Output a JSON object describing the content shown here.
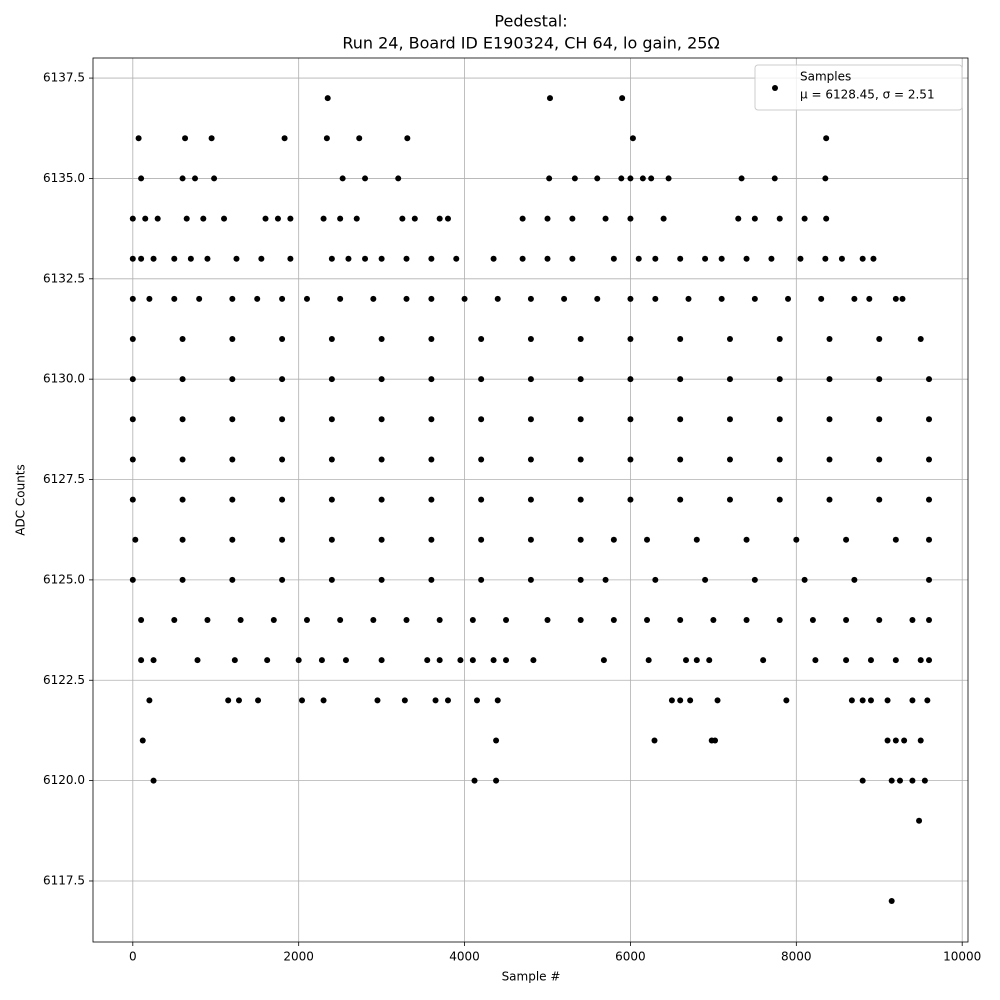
{
  "chart_data": {
    "type": "scatter",
    "title": "Pedestal:",
    "subtitle": "Run 24, Board ID E190324, CH 64, lo gain, 25Ω",
    "x_label": "Sample #",
    "y_label": "ADC Counts",
    "annotation": "μ = 6128.45, σ = 2.51",
    "legend": "upper right",
    "grid": true,
    "xlim": [
      -480,
      10070
    ],
    "ylim": [
      6115.98,
      6138.0
    ],
    "xticks": [
      0,
      2000,
      4000,
      6000,
      8000,
      10000
    ],
    "yticks": [
      6117.5,
      {
        "value": 6120,
        "label": "6120.0"
      },
      6122.5,
      {
        "value": 6125,
        "label": "6125.0"
      },
      6127.5,
      {
        "value": 6130,
        "label": "6130.0"
      },
      6132.5,
      {
        "value": 6135,
        "label": "6135.0"
      },
      6137.5
    ],
    "series": [
      {
        "name": "Samples",
        "color": "#000000",
        "x": [
          2350,
          5030,
          5900,
          70,
          630,
          950,
          1830,
          2340,
          2730,
          3310,
          6030,
          8360,
          100,
          600,
          750,
          980,
          2530,
          2800,
          3200,
          5020,
          5330,
          5600,
          5890,
          6000,
          6150,
          6250,
          6460,
          7340,
          7740,
          8350,
          0,
          150,
          300,
          650,
          850,
          1100,
          1600,
          1750,
          1900,
          2300,
          2500,
          2700,
          3250,
          3400,
          3700,
          3800,
          4700,
          5000,
          5300,
          5700,
          6000,
          6400,
          7300,
          7500,
          7800,
          8100,
          8360,
          0,
          100,
          250,
          500,
          700,
          900,
          1250,
          1550,
          1900,
          2400,
          2600,
          2800,
          3000,
          3300,
          3600,
          3900,
          4350,
          4700,
          5000,
          5300,
          5800,
          6100,
          6300,
          6600,
          6900,
          7100,
          7400,
          7700,
          8050,
          8350,
          8550,
          8800,
          8930,
          0,
          200,
          500,
          800,
          1200,
          1500,
          1800,
          2100,
          2500,
          2900,
          3300,
          3600,
          4000,
          4400,
          4800,
          5200,
          5600,
          6000,
          6300,
          6700,
          7100,
          7500,
          7900,
          8300,
          8700,
          8880,
          9200,
          9280,
          0,
          600,
          1200,
          1800,
          2400,
          3000,
          3600,
          4200,
          4800,
          5400,
          6000,
          6600,
          7200,
          7800,
          8400,
          9000,
          9500,
          0,
          600,
          1200,
          1800,
          2400,
          3000,
          3600,
          4200,
          4800,
          5400,
          6000,
          6600,
          7200,
          7800,
          8400,
          9000,
          9600,
          0,
          600,
          1200,
          1800,
          2400,
          3000,
          3600,
          4200,
          4800,
          5400,
          6000,
          6600,
          7200,
          7800,
          8400,
          9000,
          9600,
          0,
          600,
          1200,
          1800,
          2400,
          3000,
          3600,
          4200,
          4800,
          5400,
          6000,
          6600,
          7200,
          7800,
          8400,
          9000,
          9600,
          0,
          600,
          1200,
          1800,
          2400,
          3000,
          3600,
          4200,
          4800,
          5400,
          6000,
          6600,
          7200,
          7800,
          8400,
          9000,
          9600,
          30,
          600,
          1200,
          1800,
          2400,
          3000,
          3600,
          4200,
          4800,
          5400,
          5800,
          6200,
          6800,
          7400,
          8000,
          8600,
          9200,
          9600,
          0,
          600,
          1200,
          1800,
          2400,
          3000,
          3600,
          4200,
          4800,
          5400,
          5700,
          6300,
          6900,
          7500,
          8100,
          8700,
          9600,
          100,
          500,
          900,
          1300,
          1700,
          2100,
          2500,
          2900,
          3300,
          3700,
          4100,
          4500,
          5000,
          5400,
          5800,
          6200,
          6600,
          7000,
          7400,
          7800,
          8200,
          8600,
          9000,
          9400,
          9600,
          100,
          250,
          780,
          1230,
          1620,
          2000,
          2280,
          2570,
          3000,
          3550,
          3700,
          3950,
          4100,
          4350,
          4500,
          4830,
          5680,
          6220,
          6670,
          6800,
          6950,
          7600,
          8230,
          8600,
          8900,
          9200,
          9500,
          9600,
          200,
          1150,
          1280,
          1510,
          2040,
          2300,
          2950,
          3280,
          3650,
          3800,
          4150,
          4400,
          6500,
          6600,
          6720,
          7050,
          7880,
          8670,
          8800,
          8900,
          9100,
          9400,
          9580,
          120,
          4380,
          6290,
          6980,
          7020,
          9100,
          9200,
          9300,
          9500,
          250,
          4120,
          4380,
          8800,
          9150,
          9250,
          9400,
          9550,
          9480,
          9150
        ],
        "values": [
          6137,
          6137,
          6137,
          6136,
          6136,
          6136,
          6136,
          6136,
          6136,
          6136,
          6136,
          6136,
          6135,
          6135,
          6135,
          6135,
          6135,
          6135,
          6135,
          6135,
          6135,
          6135,
          6135,
          6135,
          6135,
          6135,
          6135,
          6135,
          6135,
          6135,
          6134,
          6134,
          6134,
          6134,
          6134,
          6134,
          6134,
          6134,
          6134,
          6134,
          6134,
          6134,
          6134,
          6134,
          6134,
          6134,
          6134,
          6134,
          6134,
          6134,
          6134,
          6134,
          6134,
          6134,
          6134,
          6134,
          6134,
          6133,
          6133,
          6133,
          6133,
          6133,
          6133,
          6133,
          6133,
          6133,
          6133,
          6133,
          6133,
          6133,
          6133,
          6133,
          6133,
          6133,
          6133,
          6133,
          6133,
          6133,
          6133,
          6133,
          6133,
          6133,
          6133,
          6133,
          6133,
          6133,
          6133,
          6133,
          6133,
          6133,
          6132,
          6132,
          6132,
          6132,
          6132,
          6132,
          6132,
          6132,
          6132,
          6132,
          6132,
          6132,
          6132,
          6132,
          6132,
          6132,
          6132,
          6132,
          6132,
          6132,
          6132,
          6132,
          6132,
          6132,
          6132,
          6132,
          6132,
          6132,
          6131,
          6131,
          6131,
          6131,
          6131,
          6131,
          6131,
          6131,
          6131,
          6131,
          6131,
          6131,
          6131,
          6131,
          6131,
          6131,
          6131,
          6130,
          6130,
          6130,
          6130,
          6130,
          6130,
          6130,
          6130,
          6130,
          6130,
          6130,
          6130,
          6130,
          6130,
          6130,
          6130,
          6130,
          6129,
          6129,
          6129,
          6129,
          6129,
          6129,
          6129,
          6129,
          6129,
          6129,
          6129,
          6129,
          6129,
          6129,
          6129,
          6129,
          6129,
          6128,
          6128,
          6128,
          6128,
          6128,
          6128,
          6128,
          6128,
          6128,
          6128,
          6128,
          6128,
          6128,
          6128,
          6128,
          6128,
          6128,
          6127,
          6127,
          6127,
          6127,
          6127,
          6127,
          6127,
          6127,
          6127,
          6127,
          6127,
          6127,
          6127,
          6127,
          6127,
          6127,
          6127,
          6126,
          6126,
          6126,
          6126,
          6126,
          6126,
          6126,
          6126,
          6126,
          6126,
          6126,
          6126,
          6126,
          6126,
          6126,
          6126,
          6126,
          6126,
          6125,
          6125,
          6125,
          6125,
          6125,
          6125,
          6125,
          6125,
          6125,
          6125,
          6125,
          6125,
          6125,
          6125,
          6125,
          6125,
          6125,
          6124,
          6124,
          6124,
          6124,
          6124,
          6124,
          6124,
          6124,
          6124,
          6124,
          6124,
          6124,
          6124,
          6124,
          6124,
          6124,
          6124,
          6124,
          6124,
          6124,
          6124,
          6124,
          6124,
          6124,
          6124,
          6123,
          6123,
          6123,
          6123,
          6123,
          6123,
          6123,
          6123,
          6123,
          6123,
          6123,
          6123,
          6123,
          6123,
          6123,
          6123,
          6123,
          6123,
          6123,
          6123,
          6123,
          6123,
          6123,
          6123,
          6123,
          6123,
          6123,
          6123,
          6122,
          6122,
          6122,
          6122,
          6122,
          6122,
          6122,
          6122,
          6122,
          6122,
          6122,
          6122,
          6122,
          6122,
          6122,
          6122,
          6122,
          6122,
          6122,
          6122,
          6122,
          6122,
          6122,
          6121,
          6121,
          6121,
          6121,
          6121,
          6121,
          6121,
          6121,
          6121,
          6120,
          6120,
          6120,
          6120,
          6120,
          6120,
          6120,
          6120,
          6119,
          6117
        ]
      }
    ]
  }
}
